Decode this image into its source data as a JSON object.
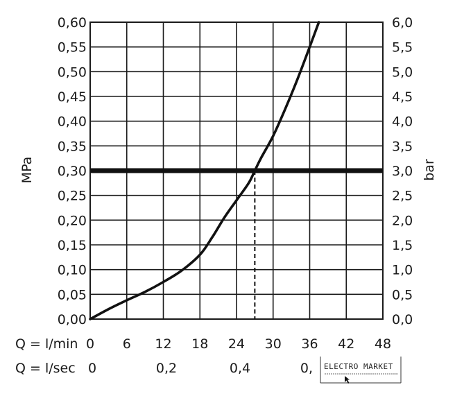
{
  "chart_data": {
    "type": "line",
    "left_axis": {
      "label": "MPa",
      "ticks": [
        "0,00",
        "0,05",
        "0,10",
        "0,15",
        "0,20",
        "0,25",
        "0,30",
        "0,35",
        "0,40",
        "0,45",
        "0,50",
        "0,55",
        "0,60"
      ],
      "ylim": [
        0,
        0.6
      ]
    },
    "right_axis": {
      "label": "bar",
      "ticks": [
        "0,0",
        "0,5",
        "1,0",
        "1,5",
        "2,0",
        "2,5",
        "3,0",
        "3,5",
        "4,0",
        "4,5",
        "5,0",
        "5,5",
        "6,0"
      ],
      "ylim": [
        0,
        6
      ]
    },
    "x_axis_lmin": {
      "label": "Q = l/min",
      "ticks": [
        "0",
        "6",
        "12",
        "18",
        "24",
        "30",
        "36",
        "42",
        "48"
      ],
      "xlim": [
        0,
        48
      ]
    },
    "x_axis_lsec": {
      "label": "Q = l/sec",
      "ticks": [
        "0",
        "0,2",
        "0,4",
        "0,"
      ]
    },
    "grid": true,
    "series": [
      {
        "x": [
          0,
          3,
          6,
          9,
          12,
          15,
          18,
          20,
          22,
          24,
          26,
          27,
          28,
          30,
          32,
          34,
          36,
          37.5
        ],
        "y": [
          0.0,
          0.02,
          0.038,
          0.055,
          0.075,
          0.098,
          0.13,
          0.165,
          0.205,
          0.24,
          0.275,
          0.3,
          0.325,
          0.37,
          0.425,
          0.485,
          0.55,
          0.6
        ]
      }
    ],
    "reference_line": {
      "y": 0.3
    },
    "marker": {
      "x": 27,
      "y": 0.3
    }
  },
  "watermark": {
    "brand": "ELECTRO MARKET"
  }
}
